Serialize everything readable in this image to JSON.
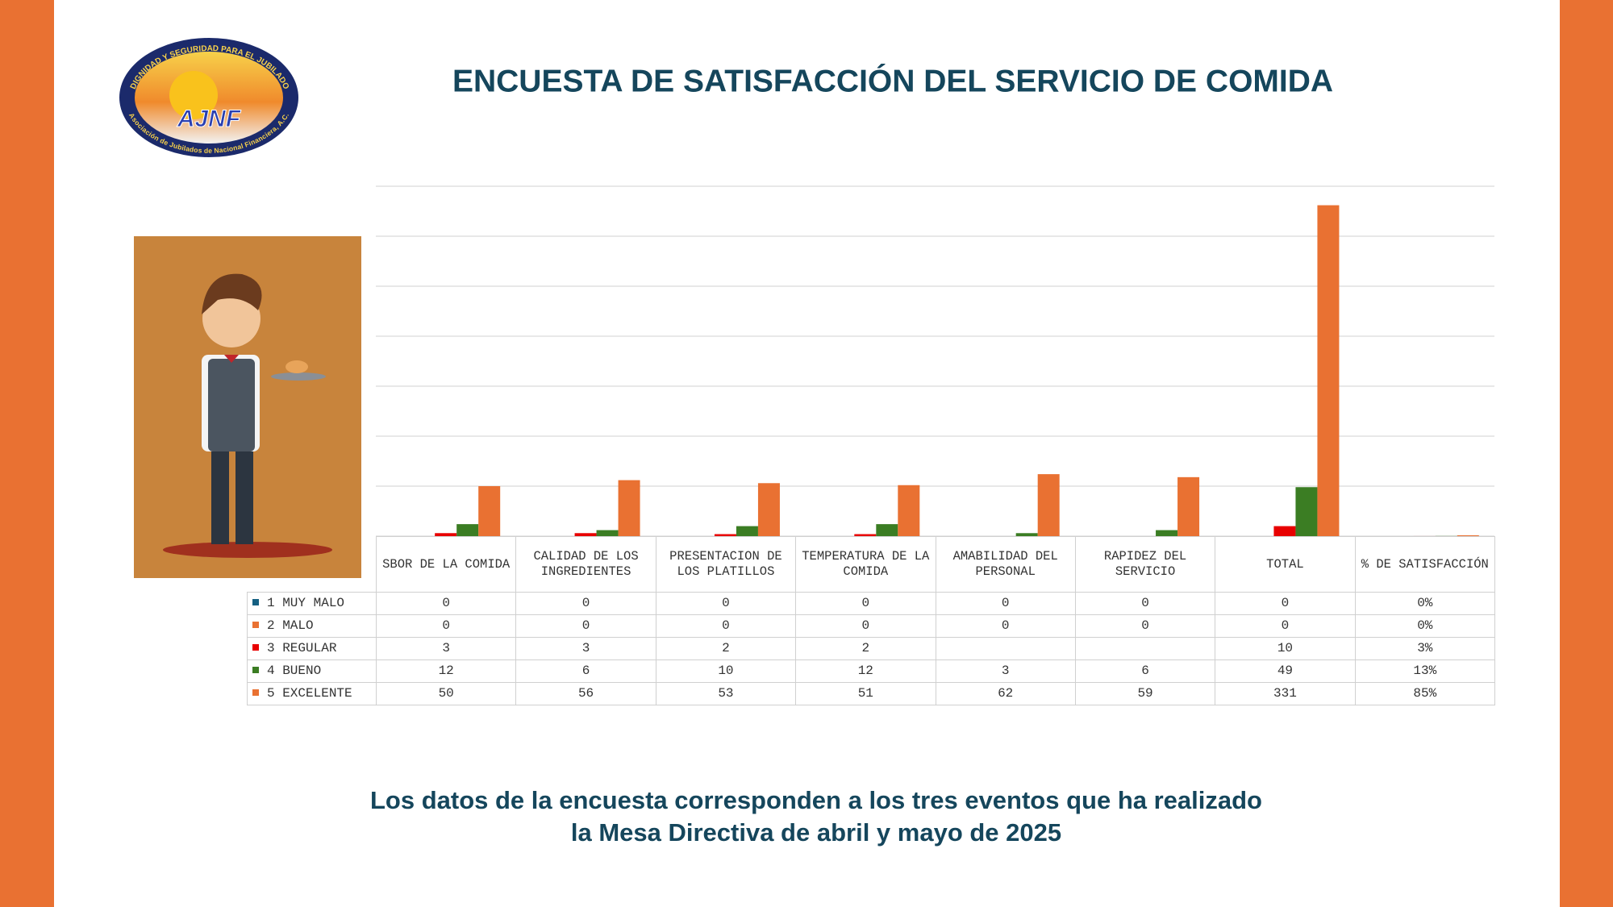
{
  "logo": {
    "arc_text": "DIGNIDAD Y SEGURIDAD PARA EL JUBILADO",
    "initials": "AJNF",
    "bottom_text": "Asociación de Jubilados de Nacional Financiera, A.C."
  },
  "chart_data": {
    "type": "bar",
    "title": "ENCUESTA DE SATISFACCIÓN DEL SERVICIO DE COMIDA",
    "categories": [
      "SBOR DE LA COMIDA",
      "CALIDAD DE LOS INGREDIENTES",
      "PRESENTACION DE LOS PLATILLOS",
      "TEMPERATURA DE LA COMIDA",
      "AMABILIDAD DEL PERSONAL",
      "RAPIDEZ DEL SERVICIO",
      "TOTAL",
      "% DE SATISFACCIÓN"
    ],
    "series": [
      {
        "name": "1 MUY MALO",
        "color": "#156082",
        "values": [
          0,
          0,
          0,
          0,
          0,
          0,
          0,
          0
        ],
        "value_labels": [
          null,
          null,
          null,
          null,
          null,
          null,
          null,
          "0%"
        ]
      },
      {
        "name": "2 MALO",
        "color": "#e97132",
        "values": [
          0,
          0,
          0,
          0,
          0,
          0,
          0,
          0
        ],
        "value_labels": [
          null,
          null,
          null,
          null,
          null,
          null,
          null,
          "0%"
        ]
      },
      {
        "name": "3 REGULAR",
        "color": "#e80000",
        "values": [
          3,
          3,
          2,
          2,
          null,
          null,
          10,
          0.03
        ],
        "value_labels": [
          null,
          null,
          null,
          null,
          null,
          null,
          null,
          "3%"
        ]
      },
      {
        "name": "4 BUENO",
        "color": "#3b7d23",
        "values": [
          12,
          6,
          10,
          12,
          3,
          6,
          49,
          0.13
        ],
        "value_labels": [
          null,
          null,
          null,
          null,
          null,
          null,
          null,
          "13%"
        ]
      },
      {
        "name": "5 EXCELENTE",
        "color": "#e97132",
        "values": [
          50,
          56,
          53,
          51,
          62,
          59,
          331,
          0.85
        ],
        "value_labels": [
          null,
          null,
          null,
          null,
          null,
          null,
          null,
          "85%"
        ]
      }
    ],
    "ylim": [
      0,
      350
    ],
    "yticks": [
      0,
      50,
      100,
      150,
      200,
      250,
      300,
      350
    ],
    "grid": true,
    "footnote": [
      "Los datos de la encuesta corresponden a los tres eventos que ha realizado",
      "la Mesa Directiva de abril y mayo de 2025"
    ]
  }
}
